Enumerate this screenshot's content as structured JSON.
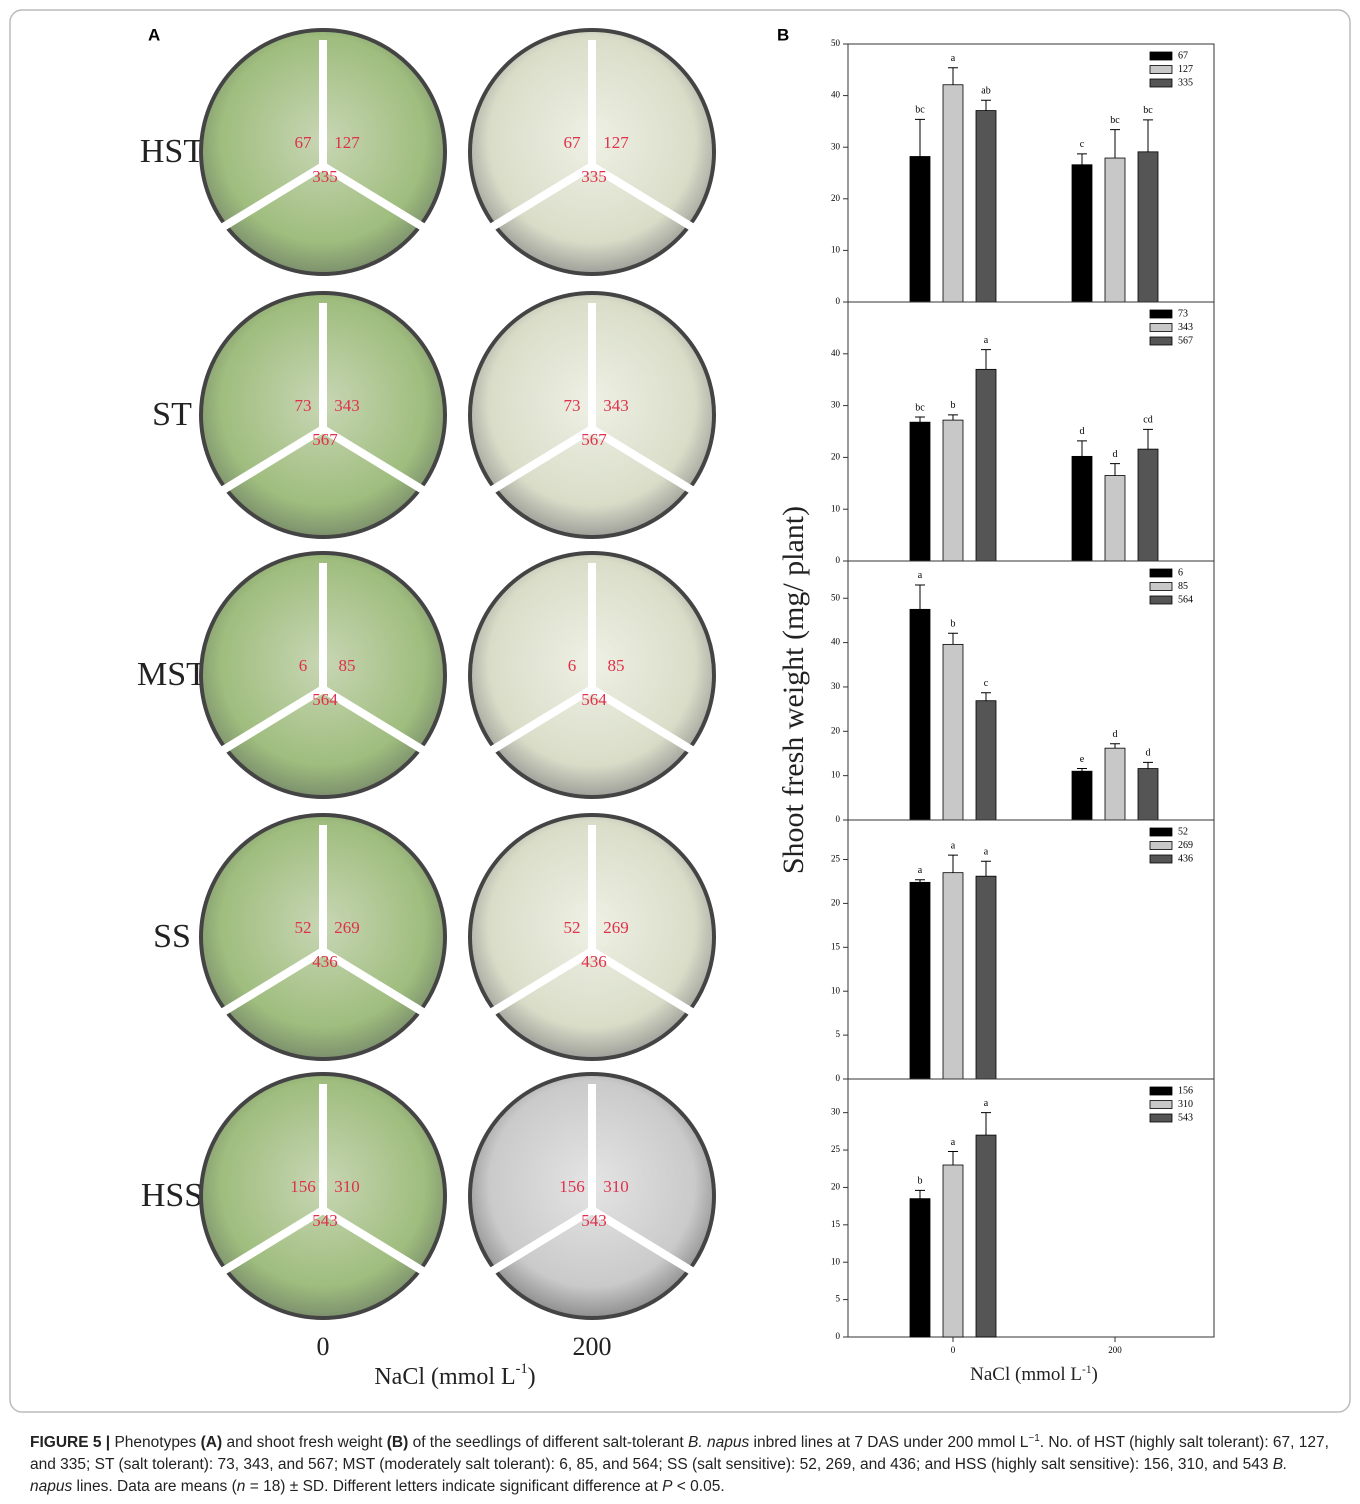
{
  "panel_a": {
    "label": "A",
    "rows": [
      {
        "label": "HST",
        "lines": [
          "67",
          "127",
          "335"
        ]
      },
      {
        "label": "ST",
        "lines": [
          "73",
          "343",
          "567"
        ]
      },
      {
        "label": "MST",
        "lines": [
          "6",
          "85",
          "564"
        ]
      },
      {
        "label": "SS",
        "lines": [
          "52",
          "269",
          "436"
        ]
      },
      {
        "label": "HSS",
        "lines": [
          "156",
          "310",
          "543"
        ]
      }
    ],
    "columns": [
      "0",
      "200"
    ],
    "xlabel": [
      "NaCl (mmol L",
      "-1",
      ")"
    ]
  },
  "panel_b": {
    "label": "B",
    "ylabel": "Shoot fresh weight (mg/ plant)",
    "xlabel": [
      "NaCl (mmol L",
      "-1",
      ")"
    ]
  },
  "chart_data": [
    {
      "type": "bar",
      "ylim": [
        0,
        50
      ],
      "yticks": [
        0,
        10,
        20,
        30,
        40,
        50
      ],
      "series": [
        {
          "name": "67",
          "color": "#000000",
          "values": [
            28.2,
            26.6
          ],
          "errors": [
            7.2,
            2.1
          ],
          "letters": [
            "bc",
            "c"
          ]
        },
        {
          "name": "127",
          "color": "#c8c8c8",
          "values": [
            42.1,
            27.9
          ],
          "errors": [
            3.3,
            5.5
          ],
          "letters": [
            "a",
            "bc"
          ]
        },
        {
          "name": "335",
          "color": "#555555",
          "values": [
            37.1,
            29.1
          ],
          "errors": [
            2.0,
            6.2
          ],
          "letters": [
            "ab",
            "bc"
          ]
        }
      ]
    },
    {
      "type": "bar",
      "ylim": [
        0,
        50
      ],
      "yticks": [
        0,
        10,
        20,
        30,
        40
      ],
      "series": [
        {
          "name": "73",
          "color": "#000000",
          "values": [
            26.8,
            20.2
          ],
          "errors": [
            1.0,
            3.0
          ],
          "letters": [
            "bc",
            "d"
          ]
        },
        {
          "name": "343",
          "color": "#c8c8c8",
          "values": [
            27.2,
            16.5
          ],
          "errors": [
            1.0,
            2.3
          ],
          "letters": [
            "b",
            "d"
          ]
        },
        {
          "name": "567",
          "color": "#555555",
          "values": [
            37.0,
            21.6
          ],
          "errors": [
            3.8,
            3.8
          ],
          "letters": [
            "a",
            "cd"
          ]
        }
      ]
    },
    {
      "type": "bar",
      "ylim": [
        0,
        58.4
      ],
      "yticks": [
        0,
        10,
        20,
        30,
        40,
        50
      ],
      "series": [
        {
          "name": "6",
          "color": "#000000",
          "values": [
            47.5,
            11.0
          ],
          "errors": [
            5.5,
            0.6
          ],
          "letters": [
            "a",
            "e"
          ]
        },
        {
          "name": "85",
          "color": "#c8c8c8",
          "values": [
            39.6,
            16.2
          ],
          "errors": [
            2.5,
            1.0
          ],
          "letters": [
            "b",
            "d"
          ]
        },
        {
          "name": "564",
          "color": "#555555",
          "values": [
            26.9,
            11.6
          ],
          "errors": [
            1.8,
            1.4
          ],
          "letters": [
            "c",
            "d"
          ]
        }
      ]
    },
    {
      "type": "bar",
      "ylim": [
        0,
        29.5
      ],
      "yticks": [
        0,
        5,
        10,
        15,
        20,
        25
      ],
      "series": [
        {
          "name": "52",
          "color": "#000000",
          "values": [
            22.4,
            null
          ],
          "errors": [
            0.3,
            null
          ],
          "letters": [
            "a",
            null
          ]
        },
        {
          "name": "269",
          "color": "#c8c8c8",
          "values": [
            23.5,
            null
          ],
          "errors": [
            2.0,
            null
          ],
          "letters": [
            "a",
            null
          ]
        },
        {
          "name": "436",
          "color": "#555555",
          "values": [
            23.1,
            null
          ],
          "errors": [
            1.7,
            null
          ],
          "letters": [
            "a",
            null
          ]
        }
      ]
    },
    {
      "type": "bar",
      "ylim": [
        0,
        34.5
      ],
      "yticks": [
        0,
        5,
        10,
        15,
        20,
        25,
        30
      ],
      "categories": [
        "0",
        "200"
      ],
      "series": [
        {
          "name": "156",
          "color": "#000000",
          "values": [
            18.5,
            null
          ],
          "errors": [
            1.1,
            null
          ],
          "letters": [
            "b",
            null
          ]
        },
        {
          "name": "310",
          "color": "#c8c8c8",
          "values": [
            23.0,
            null
          ],
          "errors": [
            1.8,
            null
          ],
          "letters": [
            "a",
            null
          ]
        },
        {
          "name": "543",
          "color": "#555555",
          "values": [
            27.0,
            null
          ],
          "errors": [
            3.0,
            null
          ],
          "letters": [
            "a",
            null
          ]
        }
      ]
    }
  ],
  "caption": [
    "FIGURE 5 | ",
    "Phenotypes ",
    "(A)",
    " and shoot fresh weight ",
    "(B)",
    " of the seedlings of different salt-tolerant ",
    "B. napus",
    " inbred lines at 7 DAS under 200 mmol L",
    "−1",
    ". No. of HST (highly salt tolerant): 67, 127, and 335; ST (salt tolerant): 73, 343, and 567; MST (moderately salt tolerant): 6, 85, and 564; SS (salt sensitive): 52, 269, and 436; and HSS (highly salt sensitive): 156, 310, and 543 ",
    "B. napus",
    " lines. Data are means (",
    "n",
    " = 18) ± SD. Different letters indicate significant difference at ",
    "P",
    " < 0.05."
  ]
}
